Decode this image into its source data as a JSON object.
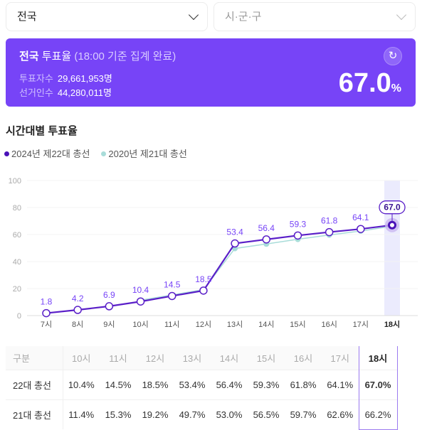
{
  "filters": {
    "region": "전국",
    "district_placeholder": "시·군·구"
  },
  "summary": {
    "region": "전국",
    "title": "투표율",
    "note": "(18:00 기준 집계 완료)",
    "voters_label": "투표자수",
    "voters": "29,661,953명",
    "electorate_label": "선거인수",
    "electorate": "44,280,011명",
    "turnout": "67.0",
    "unit": "%",
    "refresh_icon": "refresh-icon"
  },
  "section_title": "시간대별 투표율",
  "colors": {
    "accent": "#7744f7",
    "series2024": "#5a1fc8",
    "series2020": "#a8dcd9"
  },
  "chart_data": {
    "type": "line",
    "categories": [
      "7시",
      "8시",
      "9시",
      "10시",
      "11시",
      "12시",
      "13시",
      "14시",
      "15시",
      "16시",
      "17시",
      "18시"
    ],
    "ylim": [
      0,
      100
    ],
    "yticks": [
      "0",
      "20",
      "40",
      "60",
      "80",
      "100"
    ],
    "grid": true,
    "legend": "top-left",
    "highlight": "18시",
    "series": [
      {
        "name": "2024년 제22대 총선",
        "values": [
          1.8,
          4.2,
          6.9,
          10.4,
          14.5,
          18.5,
          53.4,
          56.4,
          59.3,
          61.8,
          64.1,
          67.0
        ],
        "labels": [
          "1.8",
          "4.2",
          "6.9",
          "10.4",
          "14.5",
          "18.5",
          "53.4",
          "56.4",
          "59.3",
          "61.8",
          "64.1",
          "67.0"
        ]
      },
      {
        "name": "2020년 제21대 총선",
        "values": [
          null,
          null,
          null,
          11.4,
          15.3,
          19.2,
          49.7,
          53.0,
          56.5,
          59.7,
          62.6,
          66.2
        ]
      }
    ]
  },
  "table": {
    "header": [
      "구분",
      "10시",
      "11시",
      "12시",
      "13시",
      "14시",
      "15시",
      "16시",
      "17시",
      "18시"
    ],
    "rows": [
      [
        "22대 총선",
        "10.4%",
        "14.5%",
        "18.5%",
        "53.4%",
        "56.4%",
        "59.3%",
        "61.8%",
        "64.1%",
        "67.0%"
      ],
      [
        "21대 총선",
        "11.4%",
        "15.3%",
        "19.2%",
        "49.7%",
        "53.0%",
        "56.5%",
        "59.7%",
        "62.6%",
        "66.2%"
      ]
    ]
  }
}
